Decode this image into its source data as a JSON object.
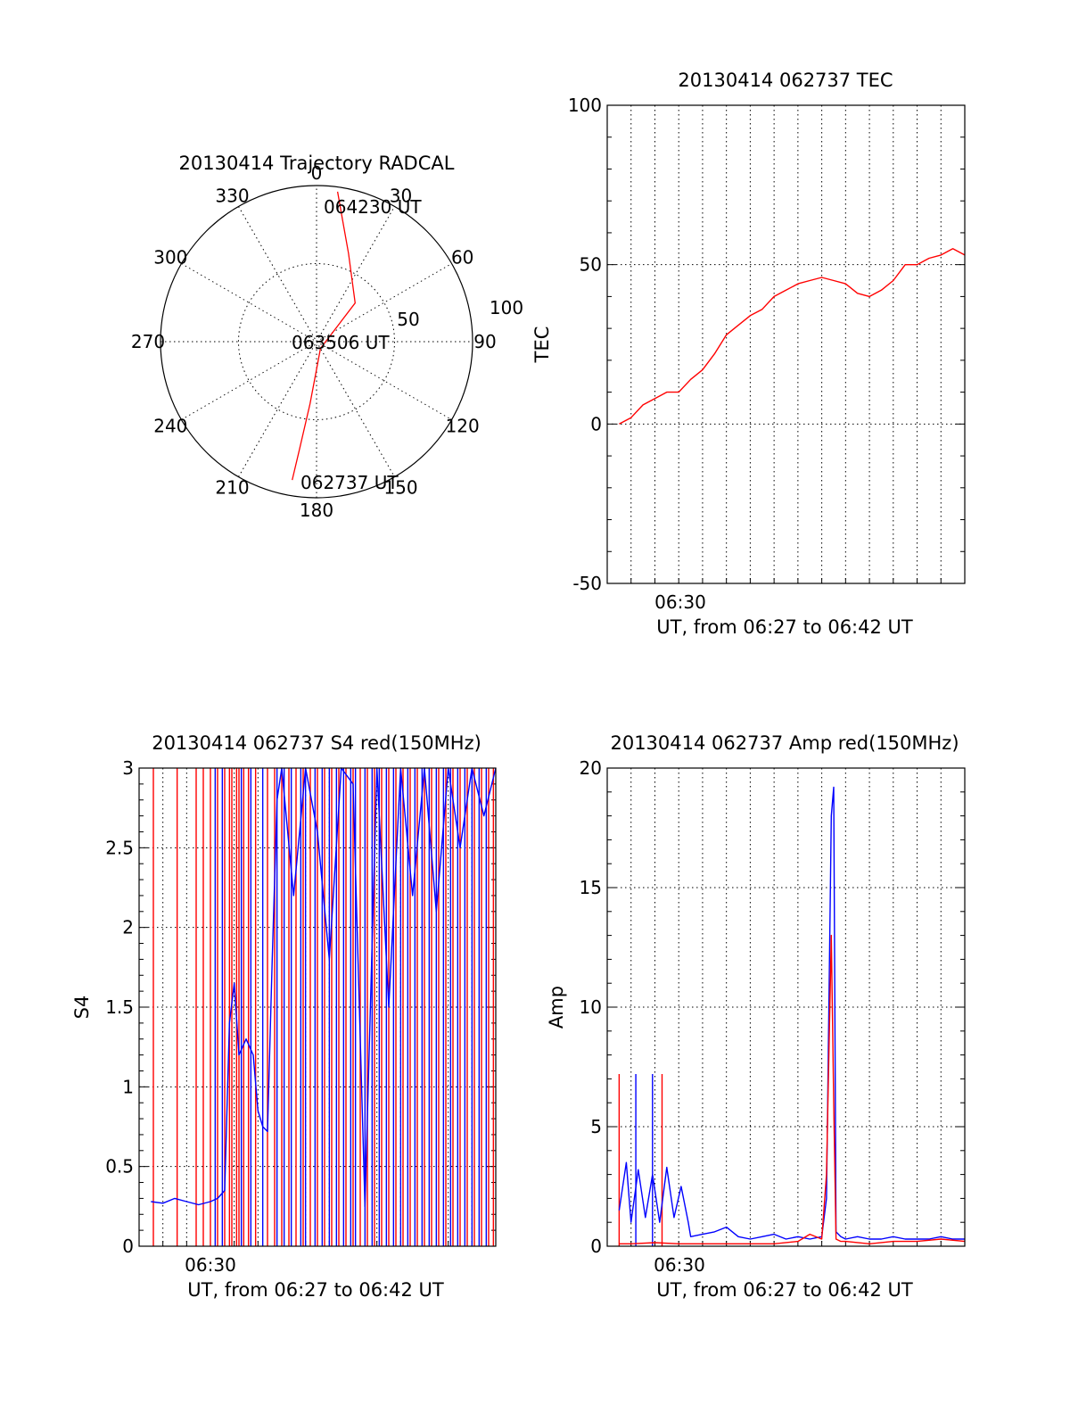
{
  "colors": {
    "red": "#ff0000",
    "blue": "#0000ff",
    "axis": "#000000"
  },
  "chart_data": [
    {
      "id": "polar",
      "type": "polar",
      "title": "20130414 Trajectory RADCAL",
      "angle_labels": [
        "0",
        "30",
        "60",
        "90",
        "120",
        "150",
        "180",
        "210",
        "240",
        "270",
        "300",
        "330"
      ],
      "radial_labels": [
        "50",
        "100"
      ],
      "rmax": 100,
      "trajectory": [
        {
          "az": 8,
          "r": 97
        },
        {
          "az": 12,
          "r": 80
        },
        {
          "az": 20,
          "r": 60
        },
        {
          "az": 45,
          "r": 35
        },
        {
          "az": 150,
          "r": 5
        },
        {
          "az": 178,
          "r": 15
        },
        {
          "az": 186,
          "r": 40
        },
        {
          "az": 189,
          "r": 70
        },
        {
          "az": 190,
          "r": 90
        }
      ],
      "annotations": [
        {
          "text": "064230 UT",
          "az": 8,
          "r": 97
        },
        {
          "text": "063506 UT",
          "az": 0,
          "r": 0
        },
        {
          "text": "062737 UT",
          "az": 190,
          "r": 90
        }
      ]
    },
    {
      "id": "tec",
      "type": "line",
      "title": "20130414 062737 TEC",
      "ylabel": "TEC",
      "xlabel": "UT, from 06:27 to 06:42 UT",
      "x_tick_label": "06:30",
      "xlim": [
        0,
        15
      ],
      "ylim": [
        -50,
        100
      ],
      "y_ticks": [
        "-50",
        "0",
        "50",
        "100"
      ],
      "series": [
        {
          "color": "red",
          "x": [
            0.5,
            1,
            1.5,
            2,
            2.5,
            3,
            3.5,
            4,
            4.5,
            5,
            5.5,
            6,
            6.5,
            7,
            7.5,
            8,
            8.5,
            9,
            9.5,
            10,
            10.5,
            11,
            11.5,
            12,
            12.5,
            13,
            13.5,
            14,
            14.5,
            15
          ],
          "y": [
            0,
            2,
            6,
            8,
            10,
            10,
            14,
            17,
            22,
            28,
            31,
            34,
            36,
            40,
            42,
            44,
            45,
            46,
            45,
            44,
            41,
            40,
            42,
            45,
            50,
            50,
            52,
            53,
            55,
            53
          ]
        }
      ]
    },
    {
      "id": "s4",
      "type": "line",
      "title": "20130414 062737 S4 red(150MHz)",
      "ylabel": "S4",
      "xlabel": "UT, from 06:27 to 06:42 UT",
      "x_tick_label": "06:30",
      "xlim": [
        0,
        15
      ],
      "ylim": [
        0,
        3
      ],
      "y_ticks": [
        "0",
        "0.5",
        "1",
        "1.5",
        "2",
        "2.5",
        "3"
      ],
      "series": [
        {
          "color": "blue",
          "x": [
            0.5,
            1,
            1.5,
            2,
            2.5,
            3,
            3.3,
            3.6,
            3.8,
            4,
            4.2,
            4.5,
            4.8,
            5,
            5.2,
            5.4,
            5.6,
            5.8,
            6,
            6.5,
            7,
            7.5,
            8,
            8.5,
            9,
            9.5,
            10,
            10.5,
            11,
            11.5,
            12,
            12.5,
            13,
            13.5,
            14,
            14.5,
            15
          ],
          "y": [
            0.28,
            0.27,
            0.3,
            0.28,
            0.26,
            0.28,
            0.3,
            0.35,
            1.4,
            1.65,
            1.2,
            1.3,
            1.2,
            0.85,
            0.75,
            0.72,
            1.8,
            2.8,
            3.0,
            2.2,
            3.0,
            2.6,
            1.8,
            3.0,
            2.9,
            0.25,
            3.0,
            1.5,
            3.0,
            2.2,
            3.0,
            2.1,
            3.0,
            2.5,
            3.0,
            2.7,
            3.0
          ]
        }
      ],
      "red_spikes_x": [
        0.6,
        1.6,
        2.4,
        2.7,
        3.0,
        3.3,
        3.6,
        3.8,
        3.9,
        4.1,
        4.2,
        4.4,
        4.6,
        4.9,
        5.4,
        5.7,
        6.0,
        6.3,
        6.6,
        6.9,
        7.2,
        7.5,
        7.8,
        8.1,
        8.4,
        8.7,
        9.0,
        9.3,
        9.6,
        9.9,
        10.2,
        10.5,
        10.8,
        11.1,
        11.4,
        11.7,
        12.0,
        12.3,
        12.6,
        12.9,
        13.2,
        13.5,
        13.8,
        14.1,
        14.4,
        14.7,
        14.9
      ],
      "blue_spikes_x": [
        3.2,
        3.5,
        4.3,
        4.7,
        5.2,
        5.8,
        6.1,
        6.4,
        6.8,
        7.0,
        7.4,
        7.7,
        8.0,
        8.3,
        8.6,
        8.9,
        9.1,
        9.5,
        9.8,
        10.1,
        10.4,
        10.7,
        11.0,
        11.3,
        11.6,
        11.9,
        12.2,
        12.5,
        12.8,
        13.1,
        13.4,
        13.7,
        14.0,
        14.3,
        14.6
      ]
    },
    {
      "id": "amp",
      "type": "line",
      "title": "20130414 062737 Amp red(150MHz)",
      "ylabel": "Amp",
      "xlabel": "UT, from 06:27 to 06:42 UT",
      "x_tick_label": "06:30",
      "xlim": [
        0,
        15
      ],
      "ylim": [
        0,
        20
      ],
      "y_ticks": [
        "0",
        "5",
        "10",
        "15",
        "20"
      ],
      "series": [
        {
          "color": "blue",
          "x": [
            0.5,
            0.8,
            1,
            1.3,
            1.6,
            1.9,
            2.2,
            2.5,
            2.8,
            3.1,
            3.4,
            3.5,
            4,
            4.5,
            5,
            5.5,
            6,
            6.5,
            7,
            7.5,
            8,
            8.5,
            9,
            9.2,
            9.4,
            9.5,
            9.6,
            9.8,
            10,
            10.5,
            11,
            11.5,
            12,
            12.5,
            13,
            13.5,
            14,
            14.5,
            15
          ],
          "y": [
            1.5,
            3.5,
            1.0,
            3.2,
            1.2,
            3.0,
            1.0,
            3.3,
            1.2,
            2.5,
            1.0,
            0.4,
            0.5,
            0.6,
            0.8,
            0.4,
            0.3,
            0.4,
            0.5,
            0.3,
            0.4,
            0.3,
            0.4,
            2.0,
            18.0,
            19.2,
            0.6,
            0.4,
            0.3,
            0.4,
            0.3,
            0.3,
            0.4,
            0.3,
            0.3,
            0.3,
            0.4,
            0.3,
            0.3
          ]
        },
        {
          "color": "red",
          "x": [
            0.5,
            1,
            2,
            3,
            3.5,
            4,
            5,
            6,
            7,
            8,
            8.5,
            9,
            9.2,
            9.4,
            9.5,
            9.6,
            9.8,
            10,
            11,
            12,
            13,
            14,
            15
          ],
          "y": [
            0.1,
            0.1,
            0.15,
            0.1,
            0.1,
            0.1,
            0.1,
            0.1,
            0.1,
            0.2,
            0.5,
            0.3,
            3.0,
            13.0,
            6.0,
            0.3,
            0.2,
            0.2,
            0.1,
            0.2,
            0.2,
            0.3,
            0.2
          ]
        }
      ],
      "red_spikes_x": [
        0.5,
        2.3
      ],
      "blue_spikes_x": [
        1.2,
        1.9
      ]
    }
  ]
}
